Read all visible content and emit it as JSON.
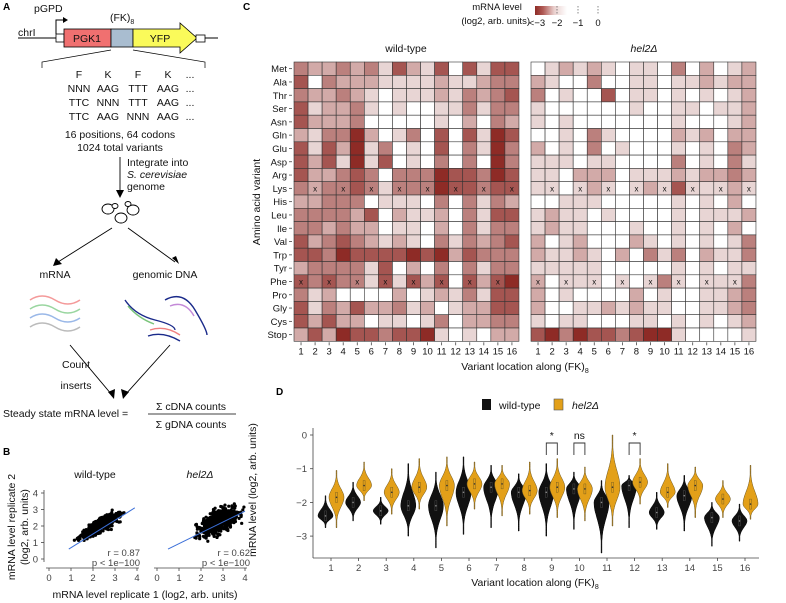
{
  "panel_labels": {
    "a": "A",
    "b": "B",
    "c": "C",
    "d": "D"
  },
  "panel_a": {
    "promoter": "pGPD",
    "chromosome": "chrI",
    "insert": "(FK)",
    "insert_sub": "8",
    "gene1": "PGK1",
    "gene2": "YFP",
    "codon_header": [
      "F",
      "K",
      "F",
      "K",
      "..."
    ],
    "codon_rows": [
      [
        "NNN",
        "AAG",
        "TTT",
        "AAG",
        "..."
      ],
      [
        "TTC",
        "NNN",
        "TTT",
        "AAG",
        "..."
      ],
      [
        "TTC",
        "AAG",
        "NNN",
        "AAG",
        "..."
      ]
    ],
    "summary1": "16 positions, 64 codons",
    "summary2": "1024 total variants",
    "integrate1": "Integrate into",
    "integrate2": "S. cerevisiae",
    "integrate3": "genome",
    "mrna": "mRNA",
    "gdna": "genomic DNA",
    "count1": "Count",
    "count2": "inserts",
    "formula_lhs": "Steady state mRNA level =",
    "formula_num": "Σ cDNA counts",
    "formula_den": "Σ gDNA counts"
  },
  "chart_data": [
    {
      "id": "B",
      "type": "scatter",
      "panels": [
        {
          "title": "wild-type",
          "r": "r = 0.87",
          "p": "p < 1e−100",
          "fit_color": "#3b6fd8"
        },
        {
          "title": "hel2Δ",
          "r": "r = 0.62",
          "p": "p < 1e−100",
          "fit_color": "#3b6fd8"
        }
      ],
      "xlabel": "mRNA level replicate 1 (log2, arb. units)",
      "ylabel1": "mRNA level replicate 2",
      "ylabel2": "(log2, arb. units)",
      "xticks": [
        "0",
        "1",
        "2",
        "3",
        "4"
      ],
      "yticks": [
        "0",
        "1",
        "2",
        "3",
        "4"
      ],
      "xlim": [
        0,
        4
      ],
      "ylim": [
        0,
        4.5
      ]
    },
    {
      "id": "C",
      "type": "heatmap",
      "legend_title1": "mRNA level",
      "legend_title2": "(log2, arb. units)",
      "legend_ticks": [
        "<−3",
        "−2",
        "−1",
        "0"
      ],
      "color_low": "#8e2b26",
      "color_high": "#ffffff",
      "ylabel": "Amino acid variant",
      "xlabel": "Variant location along (FK)",
      "xlabel_sub": "8",
      "rows": [
        "Met",
        "Ala",
        "Thr",
        "Ser",
        "Asn",
        "Gln",
        "Glu",
        "Asp",
        "Arg",
        "Lys",
        "His",
        "Leu",
        "Ile",
        "Val",
        "Trp",
        "Tyr",
        "Phe",
        "Pro",
        "Gly",
        "Cys",
        "Stop"
      ],
      "columns": [
        "1",
        "2",
        "3",
        "4",
        "5",
        "6",
        "7",
        "8",
        "9",
        "10",
        "11",
        "12",
        "13",
        "14",
        "15",
        "16"
      ],
      "wildtype_marker": "x",
      "wildtype_sequence": [
        "Phe",
        "Lys",
        "Phe",
        "Lys",
        "Phe",
        "Lys",
        "Phe",
        "Lys",
        "Phe",
        "Lys",
        "Phe",
        "Lys",
        "Phe",
        "Lys",
        "Phe",
        "Lys"
      ],
      "level_unit_log2": -0.6,
      "panels": [
        {
          "title": "wild-type",
          "levels": [
            [
              3,
              2,
              2,
              3,
              2,
              3,
              1,
              4,
              2,
              1,
              4,
              0,
              4,
              1,
              4,
              4
            ],
            [
              4,
              0,
              3,
              2,
              2,
              2,
              1,
              1,
              1,
              1,
              2,
              1,
              1,
              2,
              3,
              3
            ],
            [
              3,
              2,
              2,
              3,
              2,
              1,
              0,
              1,
              1,
              1,
              2,
              1,
              3,
              2,
              3,
              4
            ],
            [
              4,
              1,
              2,
              2,
              3,
              1,
              0,
              1,
              0,
              0,
              1,
              1,
              3,
              1,
              3,
              3
            ],
            [
              4,
              2,
              2,
              2,
              3,
              0,
              0,
              0,
              0,
              0,
              1,
              0,
              2,
              0,
              3,
              2
            ],
            [
              2,
              1,
              3,
              3,
              5,
              2,
              0,
              1,
              3,
              0,
              4,
              0,
              4,
              1,
              5,
              4
            ],
            [
              4,
              1,
              4,
              2,
              5,
              1,
              3,
              0,
              1,
              0,
              4,
              0,
              3,
              1,
              5,
              3
            ],
            [
              4,
              2,
              4,
              1,
              5,
              1,
              4,
              0,
              1,
              0,
              3,
              0,
              3,
              0,
              5,
              3
            ],
            [
              4,
              2,
              2,
              3,
              4,
              3,
              0,
              3,
              3,
              3,
              5,
              4,
              4,
              3,
              5,
              4
            ],
            [
              3,
              2,
              3,
              3,
              4,
              3,
              1,
              3,
              3,
              3,
              5,
              4,
              4,
              3,
              4,
              4
            ],
            [
              2,
              2,
              3,
              3,
              3,
              0,
              1,
              1,
              1,
              0,
              3,
              0,
              3,
              1,
              3,
              2
            ],
            [
              3,
              3,
              3,
              3,
              2,
              4,
              0,
              2,
              1,
              1,
              2,
              0,
              3,
              1,
              4,
              4
            ],
            [
              3,
              3,
              2,
              3,
              2,
              2,
              0,
              1,
              1,
              0,
              2,
              0,
              3,
              1,
              3,
              3
            ],
            [
              4,
              2,
              3,
              4,
              3,
              2,
              1,
              2,
              1,
              0,
              3,
              1,
              3,
              2,
              3,
              4
            ],
            [
              4,
              4,
              3,
              5,
              4,
              4,
              4,
              4,
              5,
              4,
              5,
              2,
              4,
              3,
              3,
              3
            ],
            [
              2,
              3,
              3,
              3,
              3,
              1,
              4,
              0,
              2,
              0,
              3,
              0,
              3,
              1,
              3,
              3
            ],
            [
              4,
              3,
              4,
              3,
              3,
              1,
              4,
              1,
              4,
              2,
              4,
              0,
              4,
              2,
              4,
              5
            ],
            [
              3,
              1,
              2,
              0,
              0,
              0,
              0,
              2,
              0,
              1,
              2,
              1,
              3,
              1,
              4,
              4
            ],
            [
              4,
              1,
              3,
              2,
              4,
              2,
              2,
              3,
              1,
              2,
              0,
              1,
              2,
              2,
              4,
              4
            ],
            [
              4,
              2,
              4,
              2,
              2,
              0,
              1,
              1,
              0,
              1,
              3,
              0,
              2,
              2,
              3,
              3
            ],
            [
              2,
              4,
              2,
              5,
              4,
              4,
              3,
              4,
              4,
              5,
              1,
              0,
              1,
              0,
              2,
              2
            ]
          ]
        },
        {
          "title": "hel2Δ",
          "levels": [
            [
              0,
              1,
              2,
              1,
              2,
              1,
              0,
              1,
              1,
              0,
              3,
              0,
              2,
              0,
              1,
              2
            ],
            [
              2,
              1,
              0,
              0,
              3,
              0,
              0,
              1,
              1,
              0,
              1,
              1,
              2,
              1,
              2,
              2
            ],
            [
              3,
              0,
              1,
              0,
              0,
              4,
              0,
              1,
              1,
              0,
              1,
              0,
              1,
              0,
              1,
              2
            ],
            [
              1,
              0,
              0,
              0,
              0,
              0,
              0,
              1,
              0,
              0,
              1,
              1,
              0,
              1,
              1,
              2
            ],
            [
              1,
              0,
              1,
              0,
              0,
              0,
              0,
              0,
              0,
              0,
              1,
              0,
              0,
              0,
              1,
              2
            ],
            [
              0,
              0,
              1,
              0,
              3,
              1,
              0,
              0,
              0,
              0,
              2,
              1,
              2,
              0,
              2,
              2
            ],
            [
              2,
              0,
              1,
              0,
              3,
              0,
              1,
              0,
              0,
              0,
              1,
              0,
              1,
              0,
              3,
              2
            ],
            [
              1,
              1,
              1,
              0,
              1,
              1,
              0,
              0,
              0,
              0,
              3,
              0,
              1,
              0,
              3,
              1
            ],
            [
              1,
              1,
              0,
              2,
              2,
              2,
              0,
              1,
              1,
              1,
              2,
              1,
              2,
              2,
              3,
              2
            ],
            [
              1,
              1,
              0,
              1,
              2,
              1,
              0,
              1,
              2,
              1,
              4,
              1,
              1,
              1,
              2,
              1
            ],
            [
              0,
              0,
              1,
              1,
              1,
              0,
              0,
              0,
              0,
              0,
              1,
              0,
              1,
              0,
              2,
              0
            ],
            [
              1,
              2,
              1,
              1,
              0,
              1,
              0,
              0,
              0,
              0,
              1,
              0,
              1,
              1,
              1,
              2
            ],
            [
              1,
              2,
              1,
              1,
              0,
              0,
              0,
              1,
              0,
              0,
              1,
              0,
              1,
              0,
              2,
              0
            ],
            [
              2,
              0,
              1,
              2,
              0,
              0,
              0,
              2,
              1,
              0,
              1,
              0,
              1,
              0,
              1,
              3
            ],
            [
              2,
              1,
              1,
              2,
              1,
              0,
              2,
              0,
              3,
              1,
              3,
              0,
              2,
              1,
              1,
              3
            ],
            [
              1,
              1,
              1,
              1,
              1,
              0,
              0,
              0,
              0,
              0,
              1,
              0,
              1,
              0,
              1,
              1
            ],
            [
              2,
              0,
              1,
              1,
              1,
              0,
              1,
              0,
              1,
              3,
              1,
              0,
              1,
              1,
              1,
              3
            ],
            [
              2,
              0,
              1,
              0,
              0,
              0,
              0,
              2,
              0,
              1,
              0,
              0,
              1,
              1,
              2,
              3
            ],
            [
              2,
              0,
              0,
              1,
              1,
              2,
              1,
              2,
              1,
              1,
              0,
              0,
              1,
              1,
              2,
              3
            ],
            [
              1,
              0,
              1,
              1,
              0,
              0,
              0,
              1,
              1,
              0,
              1,
              0,
              1,
              0,
              1,
              2
            ],
            [
              4,
              5,
              3,
              5,
              4,
              4,
              3,
              4,
              5,
              5,
              1,
              0,
              0,
              0,
              0,
              1
            ]
          ]
        }
      ]
    },
    {
      "id": "D",
      "type": "violin",
      "legend": [
        {
          "name": "wild-type",
          "color": "#111111"
        },
        {
          "name": "hel2Δ",
          "color": "#e3a019"
        }
      ],
      "ylabel": "mRNA level (log2, arb. units)",
      "xlabel": "Variant location along (FK)",
      "xlabel_sub": "8",
      "ylim": [
        -3.6,
        0.15
      ],
      "yticks": [
        {
          "v": 0,
          "label": "0"
        },
        {
          "v": -1,
          "label": "−1"
        },
        {
          "v": -2,
          "label": "−2"
        },
        {
          "v": -3,
          "label": "−3"
        }
      ],
      "categories": [
        "1",
        "2",
        "3",
        "4",
        "5",
        "6",
        "7",
        "8",
        "9",
        "10",
        "11",
        "12",
        "13",
        "14",
        "15",
        "16"
      ],
      "series": [
        {
          "name": "wild-type",
          "median": [
            -2.4,
            -2.0,
            -2.25,
            -2.1,
            -2.1,
            -1.7,
            -1.55,
            -1.7,
            -1.7,
            -1.6,
            -2.0,
            -1.5,
            -2.3,
            -1.8,
            -2.45,
            -2.55
          ],
          "min": [
            -2.75,
            -2.55,
            -2.65,
            -3.0,
            -3.35,
            -2.95,
            -2.75,
            -2.85,
            -3.0,
            -2.8,
            -3.5,
            -2.75,
            -2.8,
            -2.85,
            -3.3,
            -3.15
          ],
          "max": [
            -1.8,
            -1.4,
            -1.85,
            -0.85,
            -1.1,
            -0.65,
            -0.9,
            -1.15,
            -0.85,
            -1.1,
            -1.35,
            -1.2,
            -1.7,
            -1.2,
            -2.0,
            -2.05
          ]
        },
        {
          "name": "hel2Δ",
          "median": [
            -1.85,
            -1.5,
            -1.7,
            -1.55,
            -1.5,
            -1.45,
            -1.45,
            -1.65,
            -1.55,
            -1.6,
            -1.55,
            -1.4,
            -1.7,
            -1.5,
            -1.9,
            -2.05
          ],
          "min": [
            -2.75,
            -1.95,
            -2.35,
            -2.2,
            -2.7,
            -2.2,
            -2.4,
            -2.35,
            -2.45,
            -2.55,
            -2.7,
            -2.05,
            -2.15,
            -2.45,
            -2.45,
            -2.5
          ],
          "max": [
            -1.05,
            -0.8,
            -1.0,
            -0.7,
            -0.65,
            -0.8,
            -0.9,
            -0.8,
            -0.7,
            -0.95,
            0.0,
            -0.7,
            -0.85,
            -0.95,
            -1.35,
            -0.9
          ]
        }
      ],
      "significance": [
        {
          "position": "9",
          "label": "*"
        },
        {
          "position": "10",
          "label": "ns"
        },
        {
          "position": "12",
          "label": "*"
        }
      ]
    }
  ]
}
